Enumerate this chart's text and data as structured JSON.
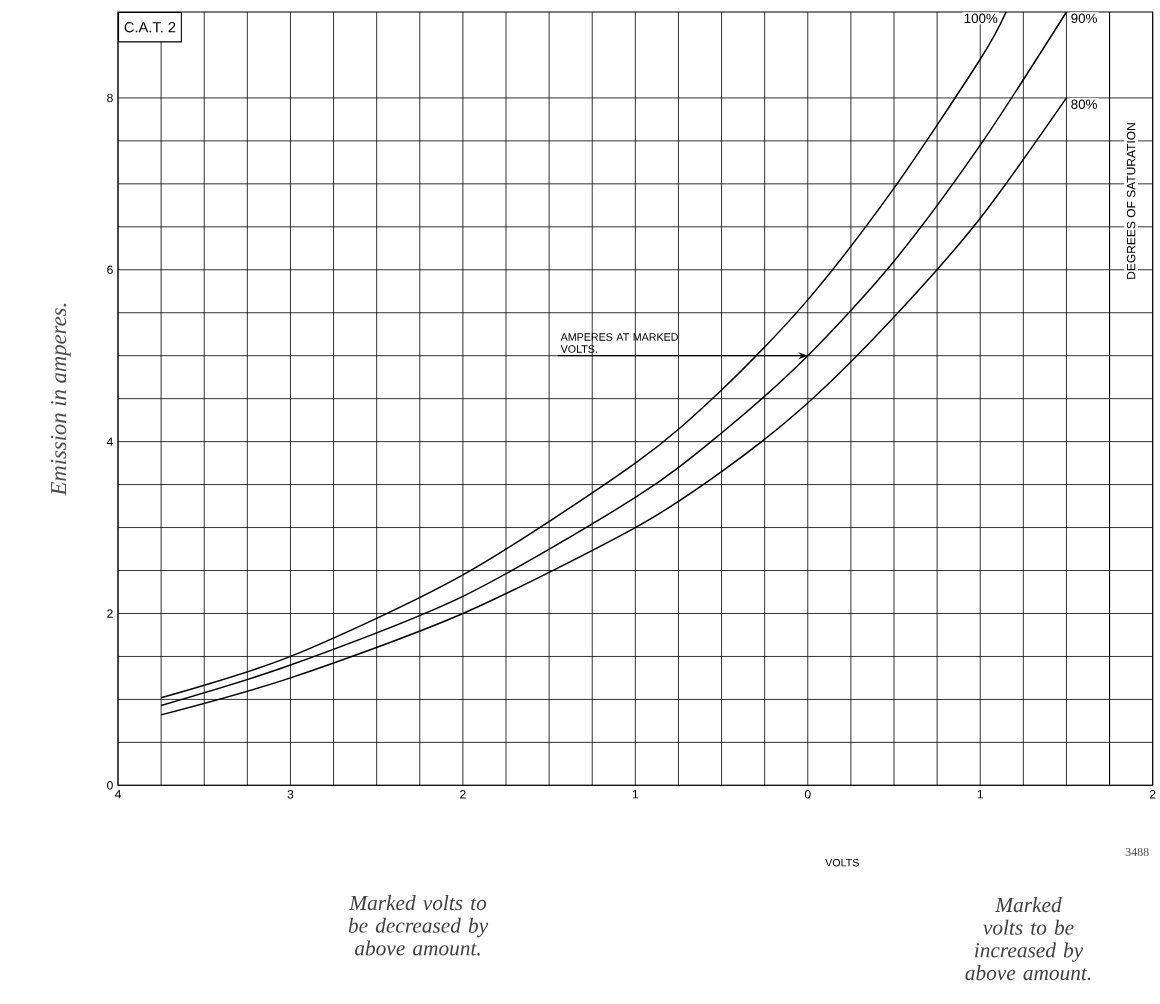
{
  "chart_data": {
    "type": "line",
    "title": "C.A.T. 2",
    "ylabel": "Emission in amperes.",
    "legend_title": "DEGREES OF SATURATION",
    "xlim": [
      -4,
      2
    ],
    "ylim": [
      0,
      9
    ],
    "xticks": [
      {
        "value": -4,
        "label": "4"
      },
      {
        "value": -3,
        "label": "3"
      },
      {
        "value": -2,
        "label": "2"
      },
      {
        "value": -1,
        "label": "1"
      },
      0,
      1,
      2
    ],
    "yticks": [
      0,
      2,
      4,
      6,
      8
    ],
    "grid": true,
    "line_style": "solid",
    "series": [
      {
        "name": "100%",
        "color": "#000000",
        "x": [
          -3.75,
          -3,
          -2,
          -1,
          -0.5,
          0,
          0.5,
          1,
          1.15
        ],
        "values": [
          1.02,
          1.5,
          2.45,
          3.75,
          4.6,
          5.65,
          6.95,
          8.45,
          9.0
        ]
      },
      {
        "name": "90%",
        "color": "#000000",
        "x": [
          -3.75,
          -3,
          -2,
          -1,
          -0.5,
          0,
          0.5,
          1,
          1.5
        ],
        "values": [
          0.93,
          1.4,
          2.2,
          3.35,
          4.1,
          5.0,
          6.1,
          7.45,
          9.0
        ]
      },
      {
        "name": "80%",
        "color": "#000000",
        "x": [
          -3.75,
          -3,
          -2,
          -1,
          -0.5,
          0,
          0.5,
          1,
          1.5
        ],
        "values": [
          0.82,
          1.25,
          2.0,
          3.0,
          3.65,
          4.45,
          5.45,
          6.6,
          8.0
        ]
      }
    ],
    "annotations": [
      {
        "text": "AMPERES AT MARKED VOLTS.",
        "x": 0,
        "y": 5
      },
      "Marked volts to be decreased by above amount.",
      "Marked volts to be increased by above amount.",
      "3488",
      "VOLTS"
    ]
  }
}
